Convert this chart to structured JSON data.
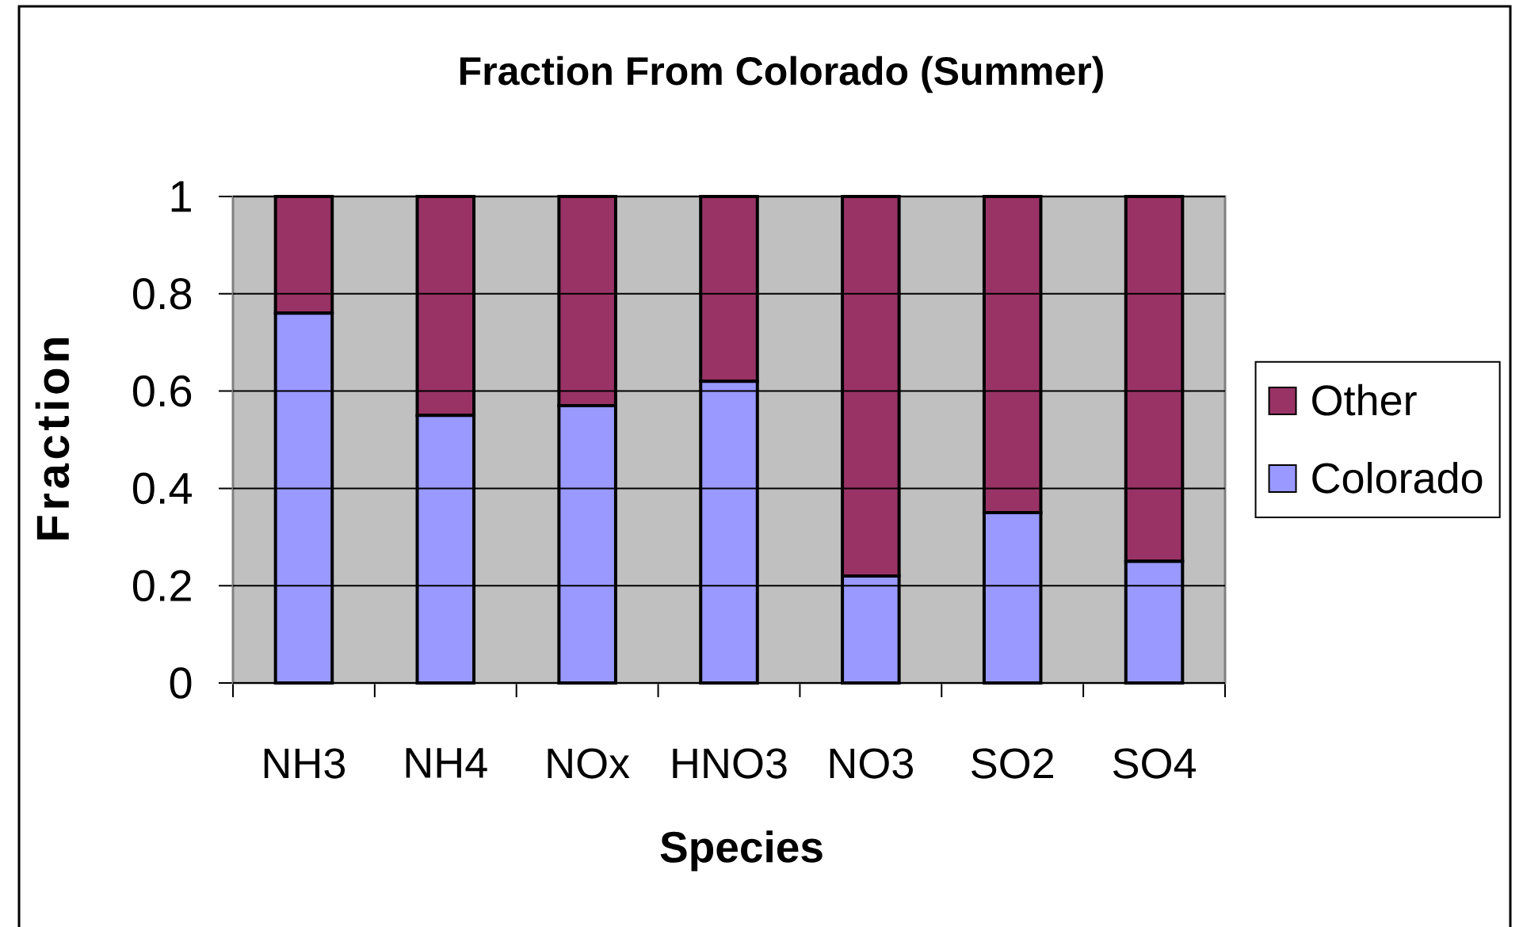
{
  "chart_data": {
    "type": "bar",
    "title": "Fraction From Colorado (Summer)",
    "xlabel": "Species",
    "ylabel": "Fraction",
    "categories": [
      "NH3",
      "NH4",
      "NOx",
      "HNO3",
      "NO3",
      "SO2",
      "SO4"
    ],
    "series": [
      {
        "name": "Colorado",
        "color": "#9999ff",
        "values": [
          0.76,
          0.55,
          0.57,
          0.62,
          0.22,
          0.35,
          0.25
        ]
      },
      {
        "name": "Other",
        "color": "#993366",
        "values": [
          0.24,
          0.45,
          0.43,
          0.38,
          0.78,
          0.65,
          0.75
        ]
      }
    ],
    "stacked": true,
    "ylim": [
      0,
      1
    ],
    "yticks": [
      0,
      0.2,
      0.4,
      0.6,
      0.8,
      1
    ],
    "grid": "y",
    "legend": "right"
  }
}
